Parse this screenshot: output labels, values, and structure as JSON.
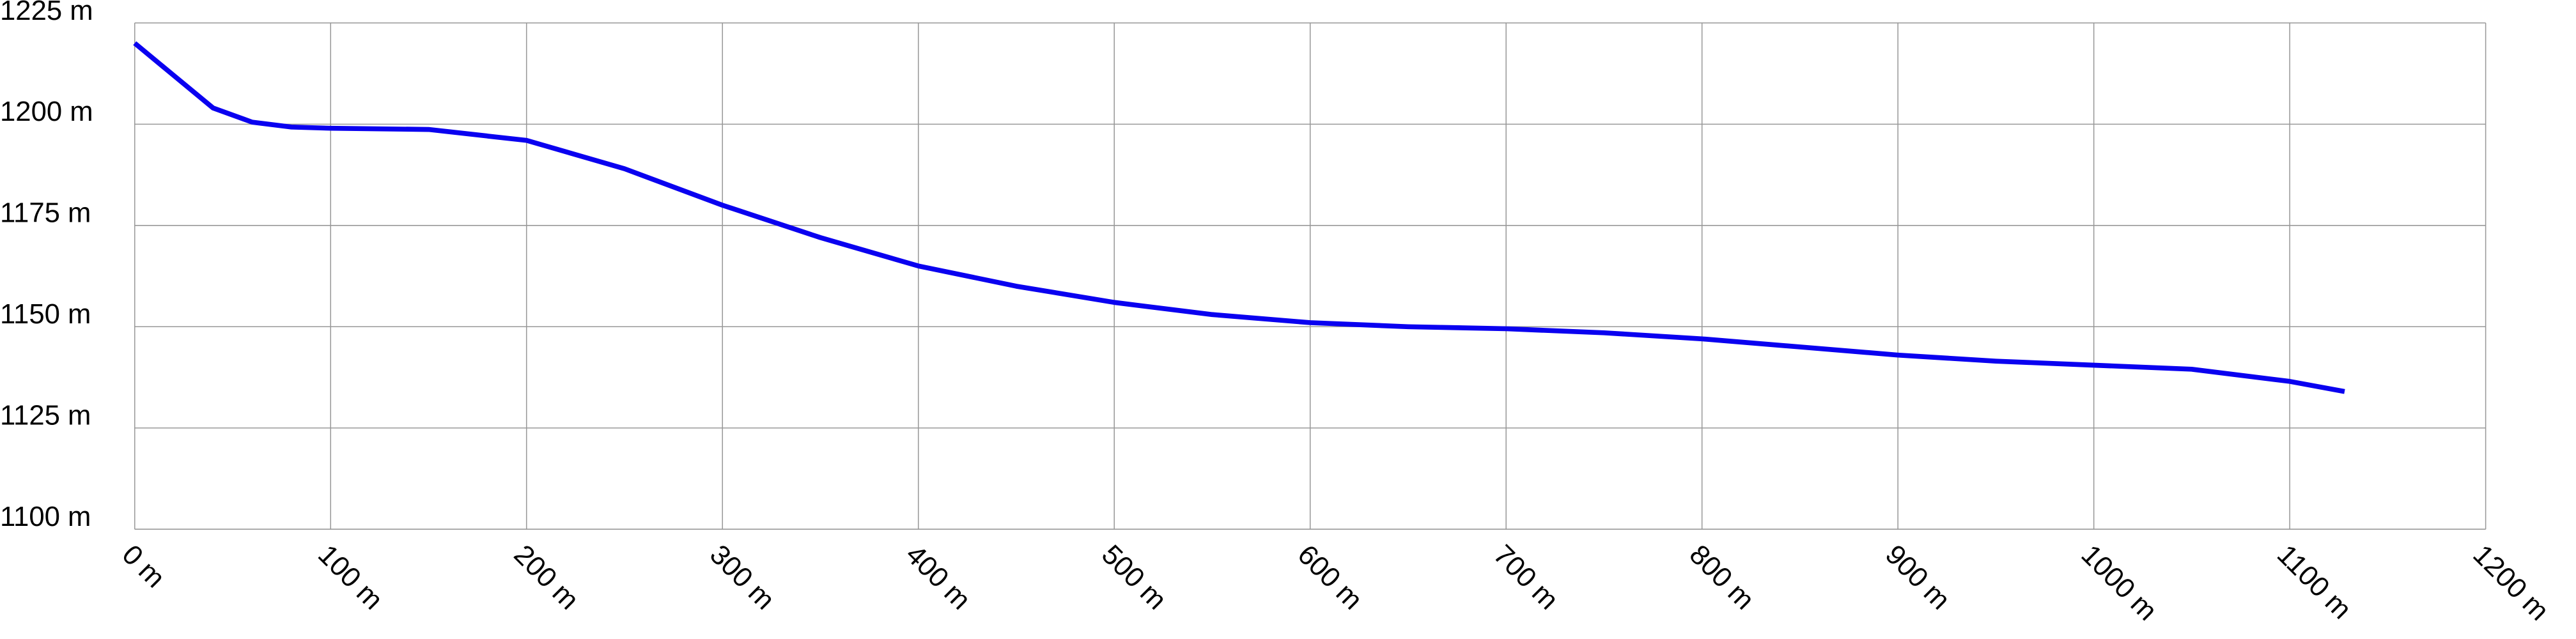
{
  "chart_data": {
    "type": "line",
    "x": [
      0,
      20,
      40,
      60,
      80,
      100,
      150,
      200,
      250,
      300,
      350,
      400,
      450,
      500,
      550,
      600,
      650,
      700,
      750,
      800,
      850,
      900,
      950,
      1000,
      1050,
      1100,
      1128
    ],
    "series": [
      {
        "color": "#0a00f0",
        "values": [
          1220,
          1212,
          1204,
          1200.5,
          1199.3,
          1199,
          1198.7,
          1196,
          1189,
          1180,
          1172,
          1165,
          1160,
          1156,
          1153,
          1151,
          1150,
          1149.5,
          1148.5,
          1147,
          1145,
          1143,
          1141.5,
          1140.5,
          1139.5,
          1136.5,
          1134
        ]
      }
    ],
    "xlim": [
      0,
      1200
    ],
    "xticks": [
      {
        "value": 0,
        "label": "0 m"
      },
      {
        "value": 100,
        "label": "100 m"
      },
      {
        "value": 200,
        "label": "200 m"
      },
      {
        "value": 300,
        "label": "300 m"
      },
      {
        "value": 400,
        "label": "400 m"
      },
      {
        "value": 500,
        "label": "500 m"
      },
      {
        "value": 600,
        "label": "600 m"
      },
      {
        "value": 700,
        "label": "700 m"
      },
      {
        "value": 800,
        "label": "800 m"
      },
      {
        "value": 900,
        "label": "900 m"
      },
      {
        "value": 1000,
        "label": "1000 m"
      },
      {
        "value": 1100,
        "label": "1100 m"
      },
      {
        "value": 1200,
        "label": "1200 m"
      }
    ],
    "ylim": [
      1100,
      1225
    ],
    "yticks": [
      {
        "value": 1100,
        "label": "1100 m"
      },
      {
        "value": 1125,
        "label": "1125 m"
      },
      {
        "value": 1150,
        "label": "1150 m"
      },
      {
        "value": 1175,
        "label": "1175 m"
      },
      {
        "value": 1200,
        "label": "1200 m"
      },
      {
        "value": 1225,
        "label": "1225 m"
      }
    ],
    "grid": true
  }
}
